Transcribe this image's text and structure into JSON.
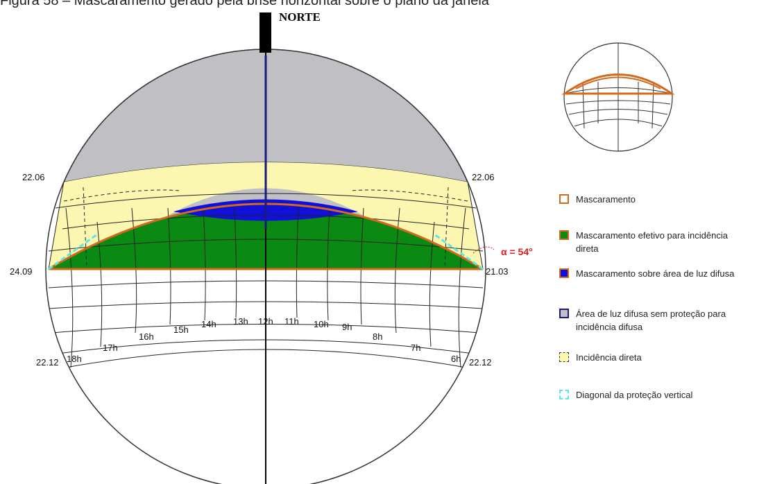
{
  "caption": "Figura 58 – Mascaramento gerado pela brise horizontal sobre o plano da janela",
  "north_label": "NORTE",
  "dates": {
    "left_upper": "22.06",
    "right_upper": "22.06",
    "left_equinox": "24.09",
    "right_equinox": "21.03",
    "left_lower": "22.12",
    "right_lower": "22.12"
  },
  "hours": [
    "18h",
    "17h",
    "16h",
    "15h",
    "14h",
    "13h",
    "12h",
    "11h",
    "10h",
    "9h",
    "8h",
    "7h",
    "6h"
  ],
  "angle_label": "α = 54°",
  "legend": [
    {
      "label": "Mascaramento",
      "swatch": "outline-orange"
    },
    {
      "label": "Mascaramento efetivo para incidência direta",
      "swatch": "fill-green"
    },
    {
      "label": "Mascaramento sobre área de luz difusa",
      "swatch": "fill-blue"
    },
    {
      "label": "Área de luz difusa sem proteção para incidência difusa",
      "swatch": "fill-gray"
    },
    {
      "label": "Incidência direta",
      "swatch": "dashed-yellow"
    },
    {
      "label": "Diagonal da proteção vertical",
      "swatch": "dashed-cyan"
    }
  ],
  "colors": {
    "gray": "#c0c0c4",
    "green": "#0a8a13",
    "blue": "#1010d8",
    "yellow": "#fbf7b0",
    "orange": "#d2691e",
    "cyan": "#5ee6e6",
    "navy": "#1a1a7a",
    "red": "#e0191f"
  }
}
